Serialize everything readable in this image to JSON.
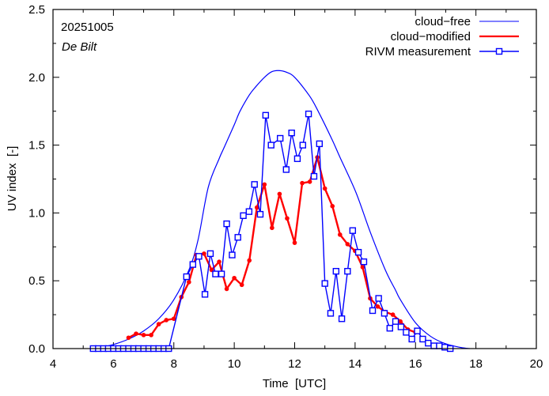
{
  "chart_data": {
    "type": "line",
    "title": "",
    "annotations": [
      "20251005",
      "De Bilt"
    ],
    "xlabel": "Time  [UTC]",
    "ylabel": "UV index  [-]",
    "xlim": [
      4,
      20
    ],
    "ylim": [
      0,
      2.5
    ],
    "xticks": [
      4,
      6,
      8,
      10,
      12,
      14,
      16,
      18,
      20
    ],
    "xtick_labels": [
      "4",
      "6",
      "8",
      "10",
      "12",
      "14",
      "16",
      "18",
      "20"
    ],
    "yticks": [
      0.0,
      0.5,
      1.0,
      1.5,
      2.0,
      2.5
    ],
    "ytick_labels": [
      "0.0",
      "0.5",
      "1.0",
      "1.5",
      "2.0",
      "2.5"
    ],
    "grid": false,
    "legend_position": "top-right",
    "series": [
      {
        "name": "cloud−free",
        "color": "#0000ff",
        "marker": "none",
        "x": [
          5.3,
          5.5,
          6.0,
          6.5,
          7.0,
          7.5,
          8.0,
          8.5,
          8.8,
          9.14,
          9.5,
          9.66,
          10.0,
          10.19,
          10.5,
          10.71,
          11.0,
          11.23,
          11.45,
          11.7,
          12.0,
          12.5,
          12.8,
          13.24,
          13.5,
          14.03,
          14.5,
          15.0,
          15.34,
          15.5,
          16.0,
          16.5,
          17.0,
          17.5,
          17.8
        ],
        "y": [
          0.0,
          0.005,
          0.03,
          0.07,
          0.13,
          0.22,
          0.36,
          0.58,
          0.8,
          1.19,
          1.4,
          1.48,
          1.65,
          1.75,
          1.87,
          1.93,
          2.0,
          2.04,
          2.05,
          2.04,
          2.0,
          1.86,
          1.74,
          1.54,
          1.41,
          1.15,
          0.86,
          0.58,
          0.43,
          0.36,
          0.19,
          0.09,
          0.035,
          0.008,
          0.0
        ]
      },
      {
        "name": "cloud−modified",
        "color": "#ff0000",
        "marker": "circle",
        "x": [
          6.5,
          6.75,
          7.0,
          7.25,
          7.5,
          7.75,
          8.0,
          8.25,
          8.5,
          8.75,
          9.0,
          9.25,
          9.5,
          9.75,
          10.0,
          10.25,
          10.5,
          10.75,
          11.0,
          11.25,
          11.5,
          11.75,
          12.0,
          12.25,
          12.5,
          12.75,
          13.0,
          13.25,
          13.5,
          13.75,
          14.0,
          14.25,
          14.5,
          14.75,
          15.0,
          15.25,
          15.5,
          15.75,
          16.0
        ],
        "y": [
          0.08,
          0.11,
          0.1,
          0.1,
          0.18,
          0.21,
          0.22,
          0.38,
          0.49,
          0.69,
          0.7,
          0.58,
          0.64,
          0.44,
          0.52,
          0.47,
          0.65,
          1.04,
          1.21,
          0.89,
          1.14,
          0.96,
          0.78,
          1.22,
          1.23,
          1.41,
          1.18,
          1.05,
          0.84,
          0.77,
          0.72,
          0.6,
          0.37,
          0.31,
          0.27,
          0.25,
          0.2,
          0.14,
          0.12
        ]
      },
      {
        "name": "RIVM measurement",
        "color": "#0000ff",
        "marker": "square",
        "x": [
          5.33,
          5.5,
          5.67,
          5.83,
          6.0,
          6.17,
          6.33,
          6.5,
          6.67,
          6.83,
          7.0,
          7.17,
          7.33,
          7.5,
          7.67,
          7.83,
          8.42,
          8.63,
          8.83,
          9.03,
          9.21,
          9.38,
          9.58,
          9.75,
          9.93,
          10.12,
          10.3,
          10.49,
          10.67,
          10.86,
          11.04,
          11.22,
          11.52,
          11.72,
          11.9,
          12.09,
          12.27,
          12.46,
          12.64,
          12.82,
          13.0,
          13.19,
          13.37,
          13.56,
          13.75,
          13.92,
          14.11,
          14.29,
          14.58,
          14.78,
          14.97,
          15.15,
          15.34,
          15.52,
          15.69,
          15.88,
          16.06,
          16.24,
          16.42,
          16.61,
          16.79,
          16.97,
          17.15
        ],
        "y": [
          0,
          0,
          0,
          0,
          0,
          0,
          0,
          0,
          0,
          0,
          0,
          0,
          0,
          0,
          0,
          0,
          0.53,
          0.62,
          0.68,
          0.4,
          0.7,
          0.55,
          0.55,
          0.92,
          0.69,
          0.82,
          0.98,
          1.01,
          1.21,
          0.99,
          1.72,
          1.5,
          1.55,
          1.32,
          1.59,
          1.4,
          1.5,
          1.73,
          1.27,
          1.51,
          0.48,
          0.26,
          0.57,
          0.22,
          0.57,
          0.87,
          0.71,
          0.64,
          0.28,
          0.37,
          0.26,
          0.15,
          0.2,
          0.16,
          0.12,
          0.07,
          0.13,
          0.07,
          0.04,
          0.02,
          0.02,
          0.01,
          0.0
        ]
      }
    ]
  }
}
